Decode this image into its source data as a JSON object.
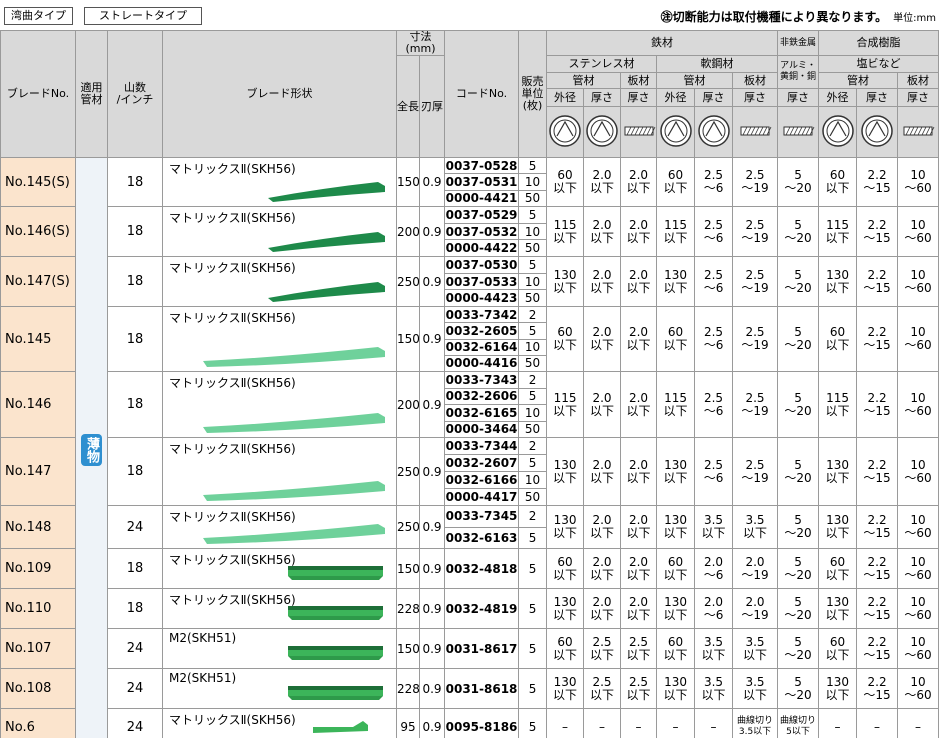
{
  "tabs": [
    "湾曲タイプ",
    "ストレートタイプ"
  ],
  "note": "㊟切断能力は取付機種により異なります。",
  "unit": "単位:mm",
  "header": {
    "blade_no": "ブレードNo.",
    "pipe": "適用\n管材",
    "teeth": "山数\n/インチ",
    "shape": "ブレード形状",
    "size": "寸法(mm)",
    "length": "全長",
    "thickness": "刃厚",
    "code": "コードNo.",
    "unit": "販売\n単位\n(枚)",
    "iron": "鉄材",
    "nonferrous": "非鉄金属",
    "resin": "合成樹脂",
    "stainless": "ステンレス材",
    "mild": "軟鋼材",
    "alu": "アルミ・\n黄銅・銅",
    "pvc": "塩ビなど",
    "sub_groups": [
      "管材",
      "板材",
      "管材",
      "板材",
      "管材",
      "板材"
    ],
    "measures": [
      "外径",
      "厚さ",
      "厚さ",
      "外径",
      "厚さ",
      "厚さ",
      "厚さ",
      "外径",
      "厚さ",
      "厚さ"
    ]
  },
  "side_label": "薄物",
  "rows": [
    {
      "no": "No.145(S)",
      "teeth": "18",
      "shape": "マトリックスⅡ(SKH56)",
      "length": "150",
      "thickness": "0.9",
      "codes": [
        [
          "0037-0528",
          "5"
        ],
        [
          "0037-0531",
          "10"
        ],
        [
          "0000-4421",
          "50"
        ]
      ],
      "caps": [
        [
          "60",
          "以下"
        ],
        [
          "2.0",
          "以下"
        ],
        [
          "2.0",
          "以下"
        ],
        [
          "60",
          "以下"
        ],
        [
          "2.5",
          "～6"
        ],
        [
          "2.5",
          "～19"
        ],
        [
          "5",
          "～20"
        ],
        [
          "60",
          "以下"
        ],
        [
          "2.2",
          "～15"
        ],
        [
          "10",
          "～60"
        ]
      ]
    },
    {
      "no": "No.146(S)",
      "teeth": "18",
      "shape": "マトリックスⅡ(SKH56)",
      "length": "200",
      "thickness": "0.9",
      "codes": [
        [
          "0037-0529",
          "5"
        ],
        [
          "0037-0532",
          "10"
        ],
        [
          "0000-4422",
          "50"
        ]
      ],
      "caps": [
        [
          "115",
          "以下"
        ],
        [
          "2.0",
          "以下"
        ],
        [
          "2.0",
          "以下"
        ],
        [
          "115",
          "以下"
        ],
        [
          "2.5",
          "～6"
        ],
        [
          "2.5",
          "～19"
        ],
        [
          "5",
          "～20"
        ],
        [
          "115",
          "以下"
        ],
        [
          "2.2",
          "～15"
        ],
        [
          "10",
          "～60"
        ]
      ]
    },
    {
      "no": "No.147(S)",
      "teeth": "18",
      "shape": "マトリックスⅡ(SKH56)",
      "length": "250",
      "thickness": "0.9",
      "codes": [
        [
          "0037-0530",
          "5"
        ],
        [
          "0037-0533",
          "10"
        ],
        [
          "0000-4423",
          "50"
        ]
      ],
      "caps": [
        [
          "130",
          "以下"
        ],
        [
          "2.0",
          "以下"
        ],
        [
          "2.0",
          "以下"
        ],
        [
          "130",
          "以下"
        ],
        [
          "2.5",
          "～6"
        ],
        [
          "2.5",
          "～19"
        ],
        [
          "5",
          "～20"
        ],
        [
          "130",
          "以下"
        ],
        [
          "2.2",
          "～15"
        ],
        [
          "10",
          "～60"
        ]
      ]
    },
    {
      "no": "No.145",
      "teeth": "18",
      "shape": "マトリックスⅡ(SKH56)",
      "length": "150",
      "thickness": "0.9",
      "codes": [
        [
          "0033-7342",
          "2"
        ],
        [
          "0032-2605",
          "5"
        ],
        [
          "0032-6164",
          "10"
        ],
        [
          "0000-4416",
          "50"
        ]
      ],
      "caps": [
        [
          "60",
          "以下"
        ],
        [
          "2.0",
          "以下"
        ],
        [
          "2.0",
          "以下"
        ],
        [
          "60",
          "以下"
        ],
        [
          "2.5",
          "～6"
        ],
        [
          "2.5",
          "～19"
        ],
        [
          "5",
          "～20"
        ],
        [
          "60",
          "以下"
        ],
        [
          "2.2",
          "～15"
        ],
        [
          "10",
          "～60"
        ]
      ]
    },
    {
      "no": "No.146",
      "teeth": "18",
      "shape": "マトリックスⅡ(SKH56)",
      "length": "200",
      "thickness": "0.9",
      "codes": [
        [
          "0033-7343",
          "2"
        ],
        [
          "0032-2606",
          "5"
        ],
        [
          "0032-6165",
          "10"
        ],
        [
          "0000-3464",
          "50"
        ]
      ],
      "caps": [
        [
          "115",
          "以下"
        ],
        [
          "2.0",
          "以下"
        ],
        [
          "2.0",
          "以下"
        ],
        [
          "115",
          "以下"
        ],
        [
          "2.5",
          "～6"
        ],
        [
          "2.5",
          "～19"
        ],
        [
          "5",
          "～20"
        ],
        [
          "115",
          "以下"
        ],
        [
          "2.2",
          "～15"
        ],
        [
          "10",
          "～60"
        ]
      ]
    },
    {
      "no": "No.147",
      "teeth": "18",
      "shape": "マトリックスⅡ(SKH56)",
      "length": "250",
      "thickness": "0.9",
      "codes": [
        [
          "0033-7344",
          "2"
        ],
        [
          "0032-2607",
          "5"
        ],
        [
          "0032-6166",
          "10"
        ],
        [
          "0000-4417",
          "50"
        ]
      ],
      "caps": [
        [
          "130",
          "以下"
        ],
        [
          "2.0",
          "以下"
        ],
        [
          "2.0",
          "以下"
        ],
        [
          "130",
          "以下"
        ],
        [
          "2.5",
          "～6"
        ],
        [
          "2.5",
          "～19"
        ],
        [
          "5",
          "～20"
        ],
        [
          "130",
          "以下"
        ],
        [
          "2.2",
          "～15"
        ],
        [
          "10",
          "～60"
        ]
      ]
    },
    {
      "no": "No.148",
      "teeth": "24",
      "shape": "マトリックスⅡ(SKH56)",
      "length": "250",
      "thickness": "0.9",
      "codes": [
        [
          "0033-7345",
          "2"
        ],
        [
          "0032-6163",
          "5"
        ]
      ],
      "caps": [
        [
          "130",
          "以下"
        ],
        [
          "2.0",
          "以下"
        ],
        [
          "2.0",
          "以下"
        ],
        [
          "130",
          "以下"
        ],
        [
          "3.5",
          "以下"
        ],
        [
          "3.5",
          "以下"
        ],
        [
          "5",
          "～20"
        ],
        [
          "130",
          "以下"
        ],
        [
          "2.2",
          "～15"
        ],
        [
          "10",
          "～60"
        ]
      ]
    },
    {
      "no": "No.109",
      "teeth": "18",
      "shape": "マトリックスⅡ(SKH56)",
      "length": "150",
      "thickness": "0.9",
      "codes": [
        [
          "0032-4818",
          "5"
        ]
      ],
      "caps": [
        [
          "60",
          "以下"
        ],
        [
          "2.0",
          "以下"
        ],
        [
          "2.0",
          "以下"
        ],
        [
          "60",
          "以下"
        ],
        [
          "2.0",
          "～6"
        ],
        [
          "2.0",
          "～19"
        ],
        [
          "5",
          "～20"
        ],
        [
          "60",
          "以下"
        ],
        [
          "2.2",
          "～15"
        ],
        [
          "10",
          "～60"
        ]
      ]
    },
    {
      "no": "No.110",
      "teeth": "18",
      "shape": "マトリックスⅡ(SKH56)",
      "length": "228",
      "thickness": "0.9",
      "codes": [
        [
          "0032-4819",
          "5"
        ]
      ],
      "caps": [
        [
          "130",
          "以下"
        ],
        [
          "2.0",
          "以下"
        ],
        [
          "2.0",
          "以下"
        ],
        [
          "130",
          "以下"
        ],
        [
          "2.0",
          "～6"
        ],
        [
          "2.0",
          "～19"
        ],
        [
          "5",
          "～20"
        ],
        [
          "130",
          "以下"
        ],
        [
          "2.2",
          "～15"
        ],
        [
          "10",
          "～60"
        ]
      ]
    },
    {
      "no": "No.107",
      "teeth": "24",
      "shape": "M2(SKH51)",
      "length": "150",
      "thickness": "0.9",
      "codes": [
        [
          "0031-8617",
          "5"
        ]
      ],
      "caps": [
        [
          "60",
          "以下"
        ],
        [
          "2.5",
          "以下"
        ],
        [
          "2.5",
          "以下"
        ],
        [
          "60",
          "以下"
        ],
        [
          "3.5",
          "以下"
        ],
        [
          "3.5",
          "以下"
        ],
        [
          "5",
          "～20"
        ],
        [
          "60",
          "以下"
        ],
        [
          "2.2",
          "～15"
        ],
        [
          "10",
          "～60"
        ]
      ]
    },
    {
      "no": "No.108",
      "teeth": "24",
      "shape": "M2(SKH51)",
      "length": "228",
      "thickness": "0.9",
      "codes": [
        [
          "0031-8618",
          "5"
        ]
      ],
      "caps": [
        [
          "130",
          "以下"
        ],
        [
          "2.5",
          "以下"
        ],
        [
          "2.5",
          "以下"
        ],
        [
          "130",
          "以下"
        ],
        [
          "3.5",
          "以下"
        ],
        [
          "3.5",
          "以下"
        ],
        [
          "5",
          "～20"
        ],
        [
          "130",
          "以下"
        ],
        [
          "2.2",
          "～15"
        ],
        [
          "10",
          "～60"
        ]
      ]
    },
    {
      "no": "No.6",
      "teeth": "24",
      "shape": "マトリックスⅡ(SKH56)",
      "length": "95",
      "thickness": "0.9",
      "codes": [
        [
          "0095-8186",
          "5"
        ]
      ],
      "caps": [
        [
          "–"
        ],
        [
          "–"
        ],
        [
          "–"
        ],
        [
          "–"
        ],
        [
          "–"
        ],
        [
          "曲線切り",
          "3.5以下"
        ],
        [
          "曲線切り",
          "5以下"
        ],
        [
          "–"
        ],
        [
          "–"
        ],
        [
          "–"
        ]
      ]
    }
  ]
}
